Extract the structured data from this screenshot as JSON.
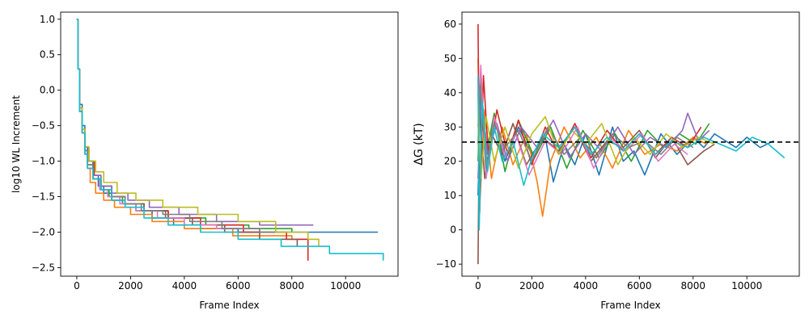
{
  "chart_data": [
    {
      "type": "line",
      "title": "",
      "xlabel": "Frame Index",
      "ylabel": "log10 WL Increment",
      "xlim": [
        -600,
        11950
      ],
      "ylim": [
        -2.62,
        1.1
      ],
      "xticks": [
        0,
        2000,
        4000,
        6000,
        8000,
        10000
      ],
      "xtick_labels": [
        "0",
        "2000",
        "4000",
        "6000",
        "8000",
        "10000"
      ],
      "yticks": [
        1.0,
        0.5,
        0.0,
        -0.5,
        -1.0,
        -1.5,
        -2.0,
        -2.5
      ],
      "ytick_labels": [
        "1.0",
        "0.5",
        "0.0",
        "−0.5",
        "−1.0",
        "−1.5",
        "−2.0",
        "−2.5"
      ],
      "grid": false,
      "legend": "none",
      "series": [
        {
          "color": "#1f77b4",
          "x": [
            0,
            40,
            100,
            200,
            300,
            400,
            600,
            800,
            1000,
            1300,
            1700,
            2200,
            2800,
            3600,
            4600,
            6000,
            11200
          ],
          "y": [
            1.0,
            0.3,
            -0.2,
            -0.5,
            -0.8,
            -1.0,
            -1.2,
            -1.35,
            -1.45,
            -1.55,
            -1.6,
            -1.7,
            -1.8,
            -1.9,
            -1.95,
            -2.0,
            -2.0
          ]
        },
        {
          "color": "#ff7f0e",
          "x": [
            0,
            40,
            100,
            200,
            300,
            400,
            500,
            700,
            1000,
            1400,
            2000,
            2800,
            4000,
            5800,
            8000,
            8500
          ],
          "y": [
            1.0,
            0.3,
            -0.3,
            -0.6,
            -0.9,
            -1.1,
            -1.3,
            -1.45,
            -1.55,
            -1.65,
            -1.75,
            -1.85,
            -1.95,
            -2.05,
            -2.1,
            -2.1
          ]
        },
        {
          "color": "#2ca02c",
          "x": [
            0,
            40,
            100,
            200,
            300,
            400,
            600,
            900,
            1200,
            1700,
            2400,
            3400,
            4800,
            6400,
            8000
          ],
          "y": [
            1.0,
            0.3,
            -0.3,
            -0.6,
            -0.85,
            -1.05,
            -1.25,
            -1.4,
            -1.5,
            -1.6,
            -1.7,
            -1.8,
            -1.9,
            -1.95,
            -2.0
          ]
        },
        {
          "color": "#d62728",
          "x": [
            0,
            40,
            100,
            200,
            300,
            450,
            650,
            900,
            1300,
            1800,
            2500,
            3400,
            4600,
            6200,
            7800,
            8600,
            8600
          ],
          "y": [
            1.0,
            0.3,
            -0.25,
            -0.55,
            -0.8,
            -1.0,
            -1.2,
            -1.35,
            -1.5,
            -1.6,
            -1.7,
            -1.8,
            -1.9,
            -2.0,
            -2.1,
            -2.2,
            -2.4
          ]
        },
        {
          "color": "#9467bd",
          "x": [
            0,
            40,
            100,
            200,
            300,
            400,
            600,
            900,
            1300,
            1900,
            2700,
            3800,
            5200,
            6800,
            8800
          ],
          "y": [
            1.0,
            0.3,
            -0.3,
            -0.6,
            -0.85,
            -1.05,
            -1.2,
            -1.35,
            -1.45,
            -1.55,
            -1.65,
            -1.75,
            -1.85,
            -1.9,
            -1.9
          ]
        },
        {
          "color": "#8c564b",
          "x": [
            0,
            40,
            100,
            200,
            300,
            400,
            600,
            900,
            1300,
            1800,
            2500,
            3300,
            4300,
            5500,
            6800,
            8200
          ],
          "y": [
            1.0,
            0.3,
            -0.3,
            -0.6,
            -0.9,
            -1.1,
            -1.25,
            -1.4,
            -1.5,
            -1.6,
            -1.7,
            -1.8,
            -1.9,
            -2.0,
            -2.1,
            -2.2
          ]
        },
        {
          "color": "#e377c2",
          "x": [
            0,
            40,
            100,
            200,
            300,
            400,
            600,
            850,
            1150,
            1600,
            2200,
            3000,
            4000,
            5200,
            6800
          ],
          "y": [
            1.0,
            0.3,
            -0.3,
            -0.6,
            -0.9,
            -1.1,
            -1.25,
            -1.4,
            -1.5,
            -1.6,
            -1.7,
            -1.8,
            -1.9,
            -1.95,
            -2.0
          ]
        },
        {
          "color": "#7f7f7f",
          "x": [
            0,
            40,
            100,
            200,
            300,
            400,
            600,
            900,
            1300,
            1800,
            2400,
            3200,
            4200,
            5400,
            6800,
            7600
          ],
          "y": [
            1.0,
            0.3,
            -0.3,
            -0.6,
            -0.85,
            -1.05,
            -1.25,
            -1.4,
            -1.5,
            -1.6,
            -1.7,
            -1.75,
            -1.85,
            -1.95,
            -2.0,
            -2.0
          ]
        },
        {
          "color": "#bcbd22",
          "x": [
            0,
            40,
            100,
            200,
            300,
            450,
            700,
            1000,
            1500,
            2200,
            3200,
            4500,
            6000,
            7400,
            8600,
            9000
          ],
          "y": [
            1.0,
            0.3,
            -0.25,
            -0.55,
            -0.8,
            -1.0,
            -1.15,
            -1.3,
            -1.45,
            -1.55,
            -1.65,
            -1.75,
            -1.85,
            -2.0,
            -2.1,
            -2.2
          ]
        },
        {
          "color": "#17becf",
          "x": [
            0,
            40,
            100,
            200,
            300,
            400,
            600,
            900,
            1300,
            1800,
            2500,
            3400,
            4600,
            6000,
            7600,
            9400,
            11400
          ],
          "y": [
            1.0,
            0.3,
            -0.3,
            -0.6,
            -0.9,
            -1.1,
            -1.25,
            -1.4,
            -1.55,
            -1.65,
            -1.8,
            -1.9,
            -2.0,
            -2.1,
            -2.2,
            -2.3,
            -2.4
          ]
        }
      ]
    },
    {
      "type": "line",
      "title": "",
      "xlabel": "Frame Index",
      "ylabel": "ΔG (kT)",
      "xlim": [
        -600,
        11950
      ],
      "ylim": [
        -13.5,
        63.5
      ],
      "xticks": [
        0,
        2000,
        4000,
        6000,
        8000,
        10000
      ],
      "xtick_labels": [
        "0",
        "2000",
        "4000",
        "6000",
        "8000",
        "10000"
      ],
      "yticks": [
        60,
        50,
        40,
        30,
        20,
        10,
        0,
        -10
      ],
      "ytick_labels": [
        "60",
        "50",
        "40",
        "30",
        "20",
        "10",
        "0",
        "−10"
      ],
      "grid": false,
      "legend": "none",
      "reference_line": {
        "y": 25.6,
        "style": "dashed",
        "color": "#000000"
      },
      "series": [
        {
          "color": "#1f77b4",
          "x": [
            0,
            100,
            300,
            600,
            1000,
            1500,
            2000,
            2500,
            2800,
            3200,
            3600,
            4000,
            4500,
            5000,
            5400,
            5800,
            6200,
            6800,
            7400,
            8000,
            8400,
            8800,
            9200,
            9600,
            10000,
            10500,
            11000
          ],
          "y": [
            10,
            40,
            18,
            33,
            20,
            30,
            22,
            27,
            14,
            25,
            19,
            28,
            16,
            30,
            20,
            23,
            16,
            28,
            22,
            27,
            24,
            28,
            26,
            24,
            27,
            24,
            26
          ]
        },
        {
          "color": "#ff7f0e",
          "x": [
            0,
            80,
            250,
            500,
            900,
            1300,
            1800,
            2200,
            2400,
            2700,
            3200,
            3800,
            4400,
            5000,
            5600,
            6200,
            6800,
            7400,
            8000,
            8500
          ],
          "y": [
            50,
            10,
            35,
            15,
            30,
            19,
            28,
            14,
            4,
            20,
            30,
            21,
            27,
            18,
            29,
            22,
            25,
            23,
            27,
            25
          ]
        },
        {
          "color": "#2ca02c",
          "x": [
            0,
            100,
            300,
            600,
            1000,
            1500,
            2100,
            2700,
            3300,
            3900,
            4500,
            5100,
            5700,
            6300,
            6900,
            7500,
            8100,
            8600
          ],
          "y": [
            20,
            45,
            22,
            34,
            17,
            32,
            21,
            30,
            18,
            29,
            21,
            28,
            20,
            29,
            24,
            28,
            25,
            31
          ]
        },
        {
          "color": "#d62728",
          "x": [
            0,
            60,
            200,
            400,
            700,
            1100,
            1500,
            2000,
            2500,
            3000,
            3600,
            4200,
            4800,
            5400,
            6000,
            6600,
            7200,
            7800,
            8300
          ],
          "y": [
            60,
            5,
            45,
            20,
            35,
            22,
            32,
            19,
            30,
            22,
            31,
            21,
            29,
            23,
            28,
            22,
            27,
            24,
            30
          ]
        },
        {
          "color": "#9467bd",
          "x": [
            0,
            120,
            350,
            700,
            1100,
            1600,
            2200,
            2800,
            3400,
            4000,
            4600,
            5200,
            5800,
            6400,
            7000,
            7600,
            7800,
            8200,
            8600
          ],
          "y": [
            15,
            40,
            22,
            31,
            20,
            30,
            24,
            32,
            21,
            28,
            23,
            30,
            22,
            27,
            24,
            29,
            34,
            26,
            29
          ]
        },
        {
          "color": "#8c564b",
          "x": [
            0,
            50,
            250,
            500,
            900,
            1300,
            1800,
            2400,
            3000,
            3600,
            4200,
            4800,
            5400,
            6000,
            6600,
            7200,
            7800,
            8400,
            8800
          ],
          "y": [
            -10,
            35,
            15,
            28,
            22,
            31,
            19,
            27,
            23,
            30,
            20,
            26,
            24,
            29,
            21,
            27,
            19,
            23,
            25
          ]
        },
        {
          "color": "#e377c2",
          "x": [
            0,
            100,
            300,
            600,
            1000,
            1400,
            1900,
            2500,
            3100,
            3700,
            4300,
            4900,
            5500,
            6100,
            6700,
            7300,
            7800
          ],
          "y": [
            30,
            48,
            15,
            33,
            21,
            28,
            16,
            26,
            22,
            30,
            18,
            27,
            23,
            28,
            20,
            25,
            22
          ]
        },
        {
          "color": "#7f7f7f",
          "x": [
            0,
            80,
            300,
            600,
            1000,
            1500,
            2000,
            2600,
            3200,
            3800,
            4400,
            5000,
            5600,
            6200,
            6800,
            7400,
            8000
          ],
          "y": [
            25,
            42,
            18,
            31,
            24,
            29,
            20,
            30,
            22,
            27,
            21,
            28,
            24,
            26,
            22,
            27,
            24
          ]
        },
        {
          "color": "#bcbd22",
          "x": [
            0,
            100,
            300,
            600,
            1000,
            1500,
            2000,
            2500,
            3000,
            3500,
            4000,
            4600,
            5200,
            5800,
            6400,
            7000,
            7600,
            8200,
            8800
          ],
          "y": [
            40,
            15,
            33,
            20,
            30,
            18,
            28,
            33,
            22,
            29,
            25,
            31,
            19,
            27,
            22,
            28,
            24,
            27,
            25
          ]
        },
        {
          "color": "#17becf",
          "x": [
            0,
            40,
            150,
            350,
            600,
            900,
            1300,
            1700,
            2000,
            2400,
            3000,
            3600,
            4200,
            4800,
            5400,
            6000,
            6600,
            7200,
            7800,
            8400,
            9000,
            9600,
            10200,
            10800,
            11400
          ],
          "y": [
            45,
            0,
            38,
            17,
            30,
            20,
            26,
            13,
            21,
            28,
            24,
            30,
            22,
            27,
            23,
            28,
            22,
            26,
            24,
            27,
            25,
            23,
            27,
            25,
            21
          ]
        }
      ]
    }
  ]
}
